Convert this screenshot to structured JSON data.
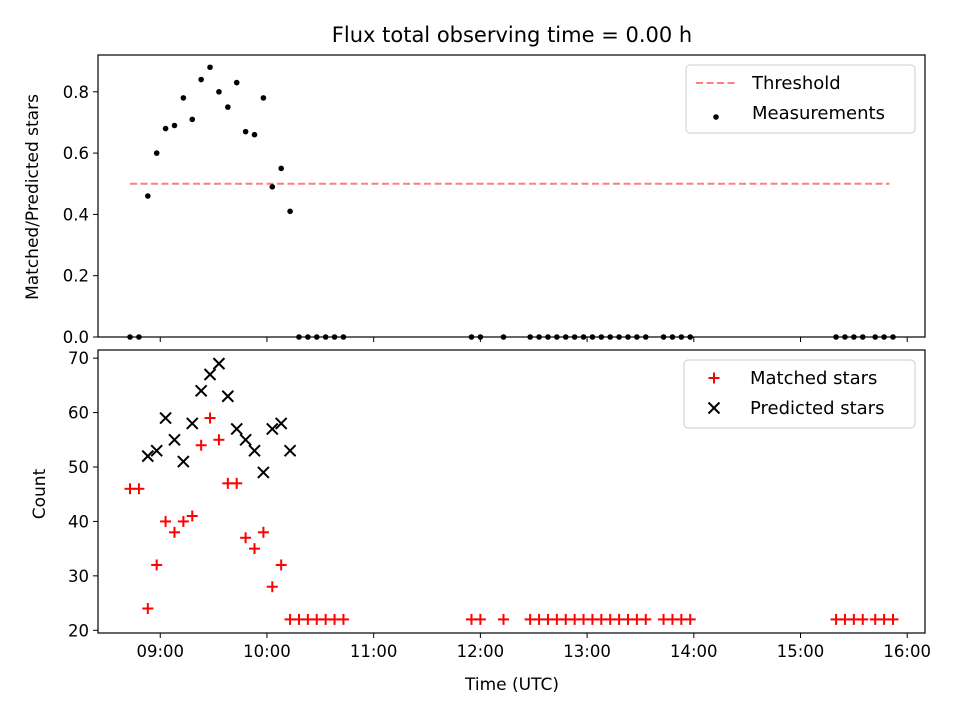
{
  "chart_data": [
    {
      "type": "scatter",
      "title": "Flux total observing time = 0.00 h",
      "ylabel": "Matched/Predicted stars",
      "xlim": [
        "08:25",
        "16:10"
      ],
      "ylim": [
        0,
        0.92
      ],
      "yticks": [
        0.0,
        0.2,
        0.4,
        0.6,
        0.8
      ],
      "legend": "top-right",
      "grid": false,
      "threshold": {
        "name": "Threshold",
        "value": 0.5,
        "x_range": [
          "08:43",
          "15:50"
        ],
        "color": "#ff7f7f",
        "style": "dashed"
      },
      "series": [
        {
          "name": "Measurements",
          "color": "#000000",
          "marker": "dot",
          "points": [
            [
              "08:43",
              0
            ],
            [
              "08:48",
              0
            ],
            [
              "08:53",
              0.46
            ],
            [
              "08:58",
              0.6
            ],
            [
              "09:03",
              0.68
            ],
            [
              "09:08",
              0.69
            ],
            [
              "09:13",
              0.78
            ],
            [
              "09:18",
              0.71
            ],
            [
              "09:23",
              0.84
            ],
            [
              "09:28",
              0.88
            ],
            [
              "09:33",
              0.8
            ],
            [
              "09:38",
              0.75
            ],
            [
              "09:43",
              0.83
            ],
            [
              "09:48",
              0.67
            ],
            [
              "09:53",
              0.66
            ],
            [
              "09:58",
              0.78
            ],
            [
              "10:03",
              0.49
            ],
            [
              "10:08",
              0.55
            ],
            [
              "10:13",
              0.41
            ],
            [
              "10:18",
              0
            ],
            [
              "10:23",
              0
            ],
            [
              "10:28",
              0
            ],
            [
              "10:33",
              0
            ],
            [
              "10:38",
              0
            ],
            [
              "10:43",
              0
            ],
            [
              "11:55",
              0
            ],
            [
              "12:00",
              0
            ],
            [
              "12:13",
              0
            ],
            [
              "12:28",
              0
            ],
            [
              "12:33",
              0
            ],
            [
              "12:38",
              0
            ],
            [
              "12:43",
              0
            ],
            [
              "12:48",
              0
            ],
            [
              "12:53",
              0
            ],
            [
              "12:58",
              0
            ],
            [
              "13:03",
              0
            ],
            [
              "13:08",
              0
            ],
            [
              "13:13",
              0
            ],
            [
              "13:18",
              0
            ],
            [
              "13:23",
              0
            ],
            [
              "13:28",
              0
            ],
            [
              "13:33",
              0
            ],
            [
              "13:43",
              0
            ],
            [
              "13:48",
              0
            ],
            [
              "13:53",
              0
            ],
            [
              "13:58",
              0
            ],
            [
              "15:20",
              0
            ],
            [
              "15:25",
              0
            ],
            [
              "15:30",
              0
            ],
            [
              "15:35",
              0
            ],
            [
              "15:42",
              0
            ],
            [
              "15:47",
              0
            ],
            [
              "15:52",
              0
            ]
          ]
        }
      ]
    },
    {
      "type": "scatter",
      "xlabel": "Time (UTC)",
      "ylabel": "Count",
      "xlim": [
        "08:25",
        "16:10"
      ],
      "ylim": [
        19.5,
        71.5
      ],
      "yticks": [
        20,
        30,
        40,
        50,
        60,
        70
      ],
      "xticks": [
        "09:00",
        "10:00",
        "11:00",
        "12:00",
        "13:00",
        "14:00",
        "15:00",
        "16:00"
      ],
      "legend": "top-right",
      "grid": false,
      "series": [
        {
          "name": "Matched stars",
          "color": "#ff0000",
          "marker": "plus",
          "points": [
            [
              "08:43",
              46
            ],
            [
              "08:48",
              46
            ],
            [
              "08:53",
              24
            ],
            [
              "08:58",
              32
            ],
            [
              "09:03",
              40
            ],
            [
              "09:08",
              38
            ],
            [
              "09:13",
              40
            ],
            [
              "09:18",
              41
            ],
            [
              "09:23",
              54
            ],
            [
              "09:28",
              59
            ],
            [
              "09:33",
              55
            ],
            [
              "09:38",
              47
            ],
            [
              "09:43",
              47
            ],
            [
              "09:48",
              37
            ],
            [
              "09:53",
              35
            ],
            [
              "09:58",
              38
            ],
            [
              "10:03",
              28
            ],
            [
              "10:08",
              32
            ],
            [
              "10:13",
              22
            ],
            [
              "10:18",
              22
            ],
            [
              "10:23",
              22
            ],
            [
              "10:28",
              22
            ],
            [
              "10:33",
              22
            ],
            [
              "10:38",
              22
            ],
            [
              "10:43",
              22
            ],
            [
              "11:55",
              22
            ],
            [
              "12:00",
              22
            ],
            [
              "12:13",
              22
            ],
            [
              "12:28",
              22
            ],
            [
              "12:33",
              22
            ],
            [
              "12:38",
              22
            ],
            [
              "12:43",
              22
            ],
            [
              "12:48",
              22
            ],
            [
              "12:53",
              22
            ],
            [
              "12:58",
              22
            ],
            [
              "13:03",
              22
            ],
            [
              "13:08",
              22
            ],
            [
              "13:13",
              22
            ],
            [
              "13:18",
              22
            ],
            [
              "13:23",
              22
            ],
            [
              "13:28",
              22
            ],
            [
              "13:33",
              22
            ],
            [
              "13:43",
              22
            ],
            [
              "13:48",
              22
            ],
            [
              "13:53",
              22
            ],
            [
              "13:58",
              22
            ],
            [
              "15:20",
              22
            ],
            [
              "15:25",
              22
            ],
            [
              "15:30",
              22
            ],
            [
              "15:35",
              22
            ],
            [
              "15:42",
              22
            ],
            [
              "15:47",
              22
            ],
            [
              "15:52",
              22
            ]
          ]
        },
        {
          "name": "Predicted stars",
          "color": "#000000",
          "marker": "x",
          "points": [
            [
              "08:53",
              52
            ],
            [
              "08:58",
              53
            ],
            [
              "09:03",
              59
            ],
            [
              "09:08",
              55
            ],
            [
              "09:13",
              51
            ],
            [
              "09:18",
              58
            ],
            [
              "09:23",
              64
            ],
            [
              "09:28",
              67
            ],
            [
              "09:33",
              69
            ],
            [
              "09:38",
              63
            ],
            [
              "09:43",
              57
            ],
            [
              "09:48",
              55
            ],
            [
              "09:53",
              53
            ],
            [
              "09:58",
              49
            ],
            [
              "10:03",
              57
            ],
            [
              "10:08",
              58
            ],
            [
              "10:13",
              53
            ]
          ]
        }
      ]
    }
  ]
}
